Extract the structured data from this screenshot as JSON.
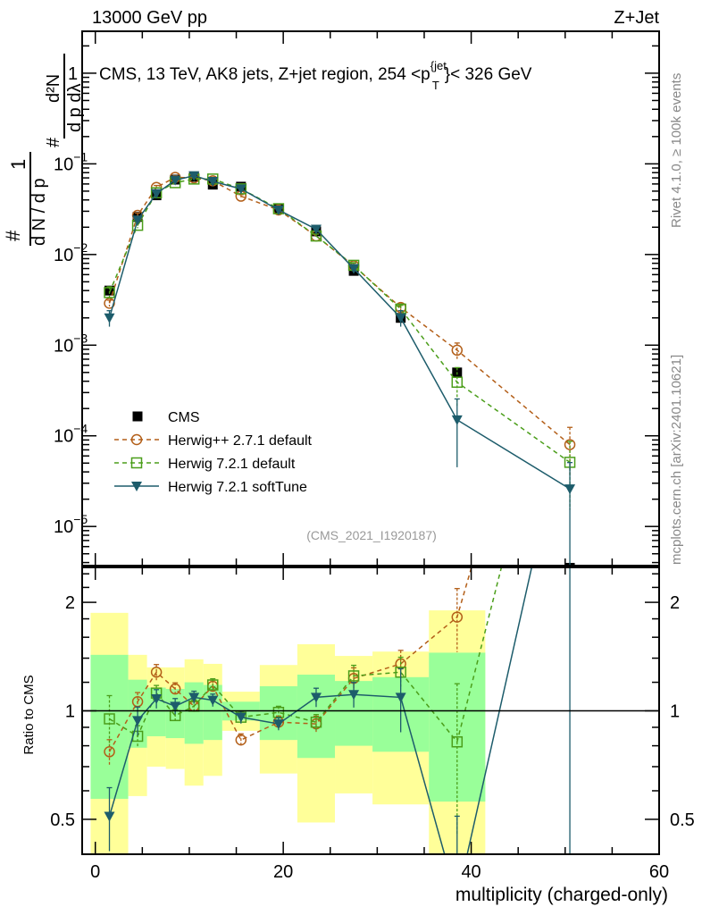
{
  "header": {
    "left": "13000 GeV pp",
    "right": "Z+Jet"
  },
  "side_labels": {
    "rivet": "Rivet 4.1.0, ≥ 100k events",
    "mcplots": "mcplots.cern.ch [arXiv:2401.10621]"
  },
  "chart_data": {
    "type": "scatter",
    "title": "CMS, 13 TeV, AK8 jets, Z+jet region, 254 <p_T^{jet}< 326 GeV",
    "title_parts": {
      "pre": "CMS, 13 TeV, AK8 jets, Z+jet region, 254 <p",
      "sup": "{jet",
      "sub": "T",
      "post": "}< 326 GeV"
    },
    "analysis_id": "(CMS_2021_I1920187)",
    "xlabel": "multiplicity (charged-only)",
    "ylabel": "1/(dN/dp_T) d²N/(dp_T dλ)",
    "ylabel_parts": {
      "num1": "1",
      "den1": "d N / d p",
      "num2": "d²N",
      "den2": "d p  dλ",
      "sub": "T",
      "hash": "#"
    },
    "ratio_ylabel": "Ratio to CMS",
    "xlim": [
      -1.4,
      60
    ],
    "ylim": [
      3.7e-06,
      2.9
    ],
    "yscale": "log",
    "ratio_ylim": [
      0.4,
      2.5
    ],
    "x_ticks": [
      0,
      20,
      40,
      60
    ],
    "x_tick_labels": [
      "0",
      "20",
      "40",
      "60"
    ],
    "y_tick_labels": [
      {
        "v": 1,
        "label": "1",
        "exp": ""
      },
      {
        "v": 0.1,
        "label": "10",
        "exp": "−1"
      },
      {
        "v": 0.01,
        "label": "10",
        "exp": "−2"
      },
      {
        "v": 0.001,
        "label": "10",
        "exp": "−3"
      },
      {
        "v": 0.0001,
        "label": "10",
        "exp": "−4"
      },
      {
        "v": 1e-05,
        "label": "10",
        "exp": "−5"
      }
    ],
    "ratio_ticks": [
      {
        "v": 0.5,
        "label": "0.5"
      },
      {
        "v": 1,
        "label": "1"
      },
      {
        "v": 2,
        "label": "2"
      }
    ],
    "legend_position": "lower-left",
    "x": [
      1.5,
      4.5,
      6.5,
      8.5,
      10.5,
      12.5,
      15.5,
      19.5,
      23.5,
      27.5,
      32.5,
      38.5,
      50.5
    ],
    "bin_edges": [
      -0.5,
      3.5,
      5.5,
      7.5,
      9.5,
      11.5,
      13.5,
      17.5,
      21.5,
      25.5,
      29.5,
      35.5,
      41.5,
      59.5
    ],
    "data": {
      "name": "CMS",
      "color": "#000000",
      "values": [
        0.004,
        0.026,
        0.045,
        0.067,
        0.072,
        0.059,
        0.056,
        0.032,
        0.018,
        0.0066,
        0.002,
        0.0005,
        3.5e-06
      ],
      "band_stat": [
        [
          0.57,
          1.43
        ],
        [
          0.79,
          1.22
        ],
        [
          0.85,
          1.16
        ],
        [
          0.84,
          1.15
        ],
        [
          0.81,
          1.2
        ],
        [
          0.83,
          1.18
        ],
        [
          0.94,
          1.06
        ],
        [
          0.83,
          1.17
        ],
        [
          0.74,
          1.26
        ],
        [
          0.8,
          1.21
        ],
        [
          0.77,
          1.24
        ],
        [
          0.56,
          1.45
        ],
        null
      ],
      "band_total": [
        [
          0.3,
          1.87
        ],
        [
          0.58,
          1.43
        ],
        [
          0.7,
          1.32
        ],
        [
          0.69,
          1.32
        ],
        [
          0.62,
          1.39
        ],
        [
          0.66,
          1.35
        ],
        [
          0.88,
          1.13
        ],
        [
          0.67,
          1.34
        ],
        [
          0.49,
          1.53
        ],
        [
          0.59,
          1.42
        ],
        [
          0.55,
          1.46
        ],
        [
          0.3,
          1.9
        ],
        null
      ],
      "band_colors": {
        "stat": "#99ff99",
        "total": "#ffff99"
      }
    },
    "series": [
      {
        "name": "Herwig++ 2.7.1 default",
        "color": "#b35f19",
        "marker": "circle",
        "line": "dashed",
        "values": [
          0.0029,
          0.027,
          0.055,
          0.071,
          0.07,
          0.065,
          0.044,
          0.031,
          0.016,
          0.0075,
          0.0026,
          0.00088,
          8e-05
        ],
        "ratio": [
          0.77,
          1.06,
          1.28,
          1.15,
          1.03,
          1.17,
          0.83,
          0.93,
          0.92,
          1.23,
          1.35,
          1.82,
          22
        ],
        "rel_err": [
          0.08,
          0.06,
          0.05,
          0.04,
          0.04,
          0.04,
          0.04,
          0.04,
          0.05,
          0.07,
          0.09,
          0.2,
          0.55
        ]
      },
      {
        "name": "Herwig 7.2.1 default",
        "color": "#4b9e1a",
        "marker": "square",
        "line": "dashed",
        "values": [
          0.0038,
          0.021,
          0.048,
          0.062,
          0.068,
          0.068,
          0.053,
          0.032,
          0.016,
          0.0076,
          0.0025,
          0.00039,
          5.1e-05
        ],
        "ratio": [
          0.95,
          0.85,
          1.12,
          0.97,
          1.03,
          1.18,
          0.96,
          0.99,
          0.93,
          1.25,
          1.28,
          0.82,
          14
        ],
        "rel_err": [
          0.16,
          0.07,
          0.05,
          0.04,
          0.04,
          0.04,
          0.04,
          0.04,
          0.05,
          0.07,
          0.1,
          0.45,
          0.7
        ]
      },
      {
        "name": "Herwig 7.2.1 softTune",
        "color": "#1d5c6b",
        "marker": "triangle-down",
        "line": "solid",
        "values": [
          0.002,
          0.024,
          0.047,
          0.066,
          0.074,
          0.064,
          0.053,
          0.031,
          0.019,
          0.007,
          0.002,
          0.00015,
          2.6e-05
        ],
        "ratio": [
          0.51,
          0.94,
          1.08,
          1.03,
          1.09,
          1.07,
          0.96,
          0.92,
          1.09,
          1.11,
          1.09,
          0.3,
          7.4
        ],
        "rel_err": [
          0.2,
          0.09,
          0.06,
          0.05,
          0.04,
          0.04,
          0.04,
          0.04,
          0.06,
          0.08,
          0.2,
          0.7,
          0.95
        ]
      }
    ]
  }
}
